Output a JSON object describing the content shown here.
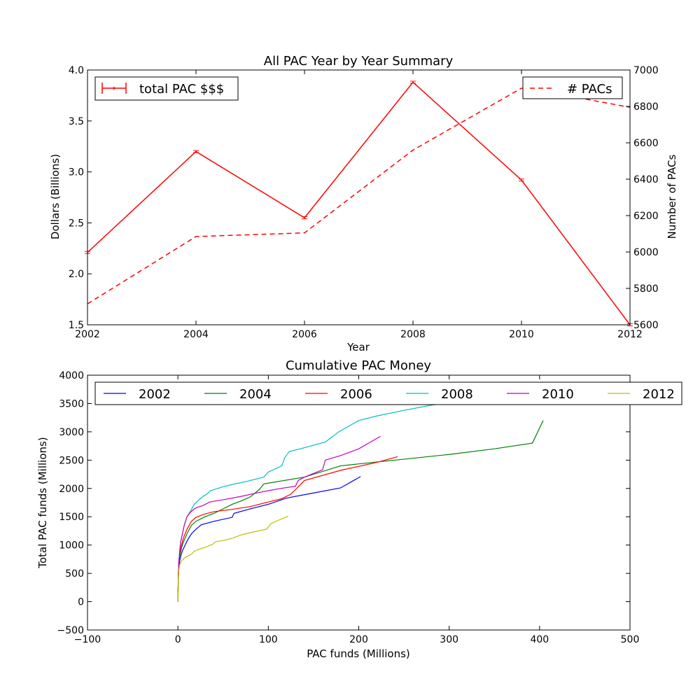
{
  "chart_data": [
    {
      "type": "line",
      "title": "All PAC Year by Year Summary",
      "xlabel": "Year",
      "ylabel": "Dollars (Billions)",
      "y2label": "Number of PACs",
      "xlim": [
        2002,
        2012
      ],
      "ylim": [
        1.5,
        4.0
      ],
      "y2lim": [
        5600,
        7000
      ],
      "xticks": [
        "2002",
        "2004",
        "2006",
        "2008",
        "2010",
        "2012"
      ],
      "yticks": [
        "1.5",
        "2.0",
        "2.5",
        "3.0",
        "3.5",
        "4.0"
      ],
      "y2ticks": [
        "5600",
        "5800",
        "6000",
        "6200",
        "6400",
        "6600",
        "6800",
        "7000"
      ],
      "grid": false,
      "series": [
        {
          "name": "total PAC $$$",
          "axis": "left",
          "color": "#ff0000",
          "style": "solid",
          "errorbars": true,
          "x": [
            2002,
            2004,
            2006,
            2008,
            2010,
            2012
          ],
          "y": [
            2.21,
            3.2,
            2.55,
            3.88,
            2.92,
            1.5
          ]
        },
        {
          "name": "# PACs",
          "axis": "right",
          "color": "#ff0000",
          "style": "dashed",
          "x": [
            2002,
            2004,
            2006,
            2008,
            2010,
            2011,
            2012
          ],
          "y": [
            5715,
            6085,
            6105,
            6560,
            6900,
            6850,
            6795
          ]
        }
      ],
      "legends": [
        {
          "placement": "top-left",
          "entries": [
            "total PAC $$$"
          ]
        },
        {
          "placement": "top-right",
          "entries": [
            "# PACs"
          ]
        }
      ]
    },
    {
      "type": "line",
      "title": "Cumulative PAC Money",
      "xlabel": "PAC funds (Millions)",
      "ylabel": "Total PAC funds (Millions)",
      "xlim": [
        -100,
        500
      ],
      "ylim": [
        -500,
        4000
      ],
      "xticks": [
        "−100",
        "0",
        "100",
        "200",
        "300",
        "400",
        "500"
      ],
      "yticks": [
        "−500",
        "0",
        "500",
        "1000",
        "1500",
        "2000",
        "2500",
        "3000",
        "3500",
        "4000"
      ],
      "grid": false,
      "legend_placement": "top",
      "series": [
        {
          "name": "2002",
          "color": "#0000ff",
          "x": [
            0,
            0.5,
            1,
            2,
            3,
            5,
            8,
            11,
            15,
            20,
            26,
            40,
            60,
            62,
            80,
            100,
            120,
            150,
            180,
            202
          ],
          "y": [
            0,
            400,
            600,
            720,
            800,
            900,
            1000,
            1100,
            1200,
            1280,
            1360,
            1420,
            1490,
            1560,
            1640,
            1720,
            1830,
            1920,
            2010,
            2210
          ]
        },
        {
          "name": "2004",
          "color": "#008000",
          "x": [
            0,
            0.5,
            1,
            2,
            4,
            6,
            10,
            15,
            20,
            30,
            40,
            50,
            60,
            70,
            80,
            90,
            95,
            140,
            180,
            240,
            300,
            350,
            392,
            404
          ],
          "y": [
            0,
            450,
            650,
            800,
            950,
            1050,
            1200,
            1350,
            1420,
            1500,
            1560,
            1640,
            1720,
            1780,
            1850,
            1980,
            2080,
            2200,
            2400,
            2500,
            2600,
            2700,
            2800,
            3200
          ]
        },
        {
          "name": "2006",
          "color": "#ff0000",
          "x": [
            0,
            0.5,
            1,
            2,
            4,
            6,
            10,
            15,
            20,
            30,
            40,
            60,
            80,
            100,
            115,
            125,
            140,
            180,
            220,
            243
          ],
          "y": [
            0,
            500,
            700,
            850,
            1000,
            1120,
            1280,
            1420,
            1490,
            1550,
            1590,
            1630,
            1680,
            1760,
            1820,
            1900,
            2140,
            2320,
            2460,
            2560
          ]
        },
        {
          "name": "2008",
          "color": "#00bfbf",
          "x": [
            0,
            0.5,
            1,
            2,
            3,
            5,
            7,
            10,
            14,
            18,
            22,
            27,
            32,
            36,
            40,
            50,
            60,
            75,
            95,
            100,
            115,
            118,
            123,
            140,
            163,
            178,
            200,
            220,
            250,
            280,
            300,
            330,
            360,
            400,
            430
          ],
          "y": [
            0,
            450,
            700,
            900,
            1050,
            1200,
            1350,
            1500,
            1600,
            1720,
            1780,
            1850,
            1900,
            1960,
            1980,
            2030,
            2070,
            2120,
            2200,
            2290,
            2400,
            2540,
            2650,
            2720,
            2820,
            3000,
            3200,
            3280,
            3380,
            3470,
            3520,
            3600,
            3680,
            3780,
            3860
          ]
        },
        {
          "name": "2010",
          "color": "#bf00bf",
          "x": [
            0,
            0.5,
            1,
            2,
            3,
            5,
            7,
            10,
            14,
            18,
            22,
            28,
            35,
            50,
            70,
            90,
            110,
            130,
            133,
            140,
            160,
            163,
            180,
            200,
            224
          ],
          "y": [
            0,
            450,
            700,
            900,
            1050,
            1200,
            1350,
            1500,
            1580,
            1640,
            1670,
            1700,
            1760,
            1800,
            1860,
            1930,
            1990,
            2040,
            2140,
            2200,
            2330,
            2500,
            2580,
            2700,
            2920
          ]
        },
        {
          "name": "2012",
          "color": "#bfbf00",
          "x": [
            0,
            0.5,
            1,
            2,
            4,
            7,
            10,
            15,
            18,
            22,
            30,
            38,
            42,
            50,
            60,
            70,
            80,
            98,
            103,
            110,
            122
          ],
          "y": [
            0,
            350,
            550,
            650,
            720,
            770,
            800,
            840,
            890,
            920,
            960,
            1010,
            1060,
            1080,
            1120,
            1180,
            1220,
            1280,
            1380,
            1430,
            1510
          ]
        }
      ]
    }
  ]
}
